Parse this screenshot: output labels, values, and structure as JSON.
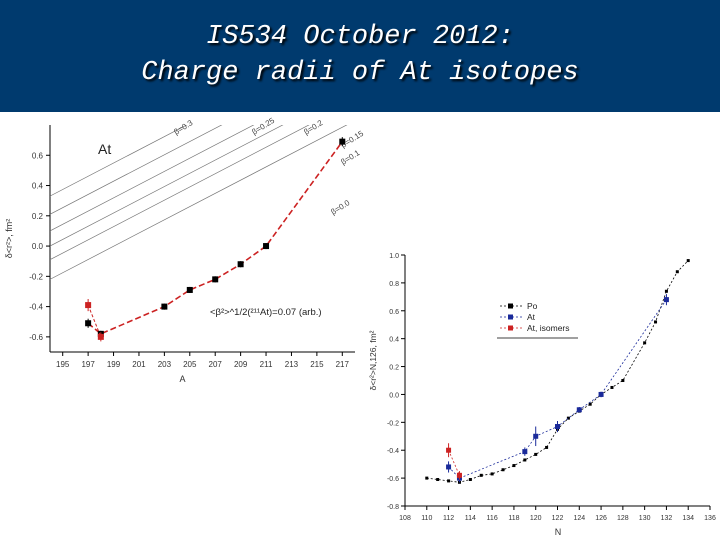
{
  "slide": {
    "title_line1": "IS534 October 2012:",
    "title_line2": "Charge radii of At isotopes"
  },
  "colors": {
    "header_bg": "#003a6e",
    "title_text": "#ffffff",
    "red": "#cc2222",
    "blue": "#1a2a9a"
  },
  "chart_data": [
    {
      "type": "line",
      "title": "At",
      "xlabel": "A",
      "ylabel": "δ<r²>, fm²",
      "xlim": [
        194,
        218
      ],
      "ylim": [
        -0.7,
        0.8
      ],
      "x_ticks": [
        195,
        197,
        199,
        201,
        203,
        205,
        207,
        209,
        211,
        213,
        215,
        217
      ],
      "y_ticks": [
        -0.6,
        -0.4,
        -0.2,
        0.0,
        0.2,
        0.4,
        0.6
      ],
      "grid": false,
      "annotation": "<β²>^1/2(²¹¹At)=0.07 (arb.)",
      "beta_lines": [
        {
          "label": "β=0.3",
          "y_at_xmin": 0.33
        },
        {
          "label": "β=0.25",
          "y_at_xmin": 0.21
        },
        {
          "label": "β=0.2",
          "y_at_xmin": 0.1
        },
        {
          "label": "β=0.15",
          "y_at_xmin": 0.0
        },
        {
          "label": "β=0.1",
          "y_at_xmin": -0.09
        },
        {
          "label": "β=0.0",
          "y_at_xmin": -0.22
        }
      ],
      "series": [
        {
          "color": "#000000",
          "points": [
            [
              197,
              -0.51
            ],
            [
              198,
              -0.58
            ],
            [
              203,
              -0.4
            ],
            [
              205,
              -0.29
            ],
            [
              207,
              -0.22
            ],
            [
              209,
              -0.12
            ],
            [
              211,
              0.0
            ],
            [
              217,
              0.69
            ]
          ],
          "errors": [
            0.03,
            0.02,
            0.02,
            0.02,
            0.02,
            0.02,
            0.02,
            0.03
          ]
        },
        {
          "color": "#cc2222",
          "points": [
            [
              197,
              -0.39
            ],
            [
              198,
              -0.6
            ]
          ],
          "errors": [
            0.04,
            0.03
          ]
        }
      ]
    },
    {
      "type": "line",
      "xlabel": "N",
      "ylabel": "δ<r²>N,126, fm²",
      "xlim": [
        108,
        136
      ],
      "ylim": [
        -0.8,
        1.0
      ],
      "x_ticks": [
        108,
        110,
        112,
        114,
        116,
        118,
        120,
        122,
        124,
        126,
        128,
        130,
        132,
        134,
        136
      ],
      "y_ticks": [
        -0.8,
        -0.6,
        -0.4,
        -0.2,
        0.0,
        0.2,
        0.4,
        0.6,
        0.8,
        1.0
      ],
      "y_tick_labels": [
        "-0.8",
        "-0.6",
        "-0.4",
        "-0.2",
        "0.0",
        "0.2",
        "0.4",
        "0.6",
        "0.8",
        "1.0"
      ],
      "grid": false,
      "legend": {
        "position": "top-right",
        "entries": [
          "Po",
          "At",
          "At, isomers"
        ]
      },
      "series": [
        {
          "name": "Po",
          "color": "#000000",
          "marker": "square-small",
          "points": [
            [
              110,
              -0.6
            ],
            [
              111,
              -0.61
            ],
            [
              112,
              -0.62
            ],
            [
              113,
              -0.63
            ],
            [
              114,
              -0.61
            ],
            [
              115,
              -0.58
            ],
            [
              116,
              -0.57
            ],
            [
              117,
              -0.54
            ],
            [
              118,
              -0.51
            ],
            [
              119,
              -0.47
            ],
            [
              120,
              -0.43
            ],
            [
              121,
              -0.38
            ],
            [
              122,
              -0.25
            ],
            [
              123,
              -0.17
            ],
            [
              124,
              -0.12
            ],
            [
              125,
              -0.07
            ],
            [
              126,
              0.0
            ],
            [
              127,
              0.05
            ],
            [
              128,
              0.1
            ],
            [
              130,
              0.37
            ],
            [
              131,
              0.52
            ],
            [
              132,
              0.74
            ],
            [
              133,
              0.88
            ],
            [
              134,
              0.96
            ]
          ]
        },
        {
          "name": "At",
          "color": "#1a2a9a",
          "marker": "square",
          "points": [
            [
              112,
              -0.52
            ],
            [
              113,
              -0.6
            ],
            [
              119,
              -0.41
            ],
            [
              120,
              -0.3
            ],
            [
              122,
              -0.23
            ],
            [
              124,
              -0.11
            ],
            [
              126,
              0.0
            ],
            [
              132,
              0.68
            ]
          ],
          "errors": [
            0.04,
            0.03,
            0.03,
            0.07,
            0.04,
            0.02,
            0.02,
            0.04
          ]
        },
        {
          "name": "At, isomers",
          "color": "#cc2222",
          "marker": "square",
          "points": [
            [
              112,
              -0.4
            ],
            [
              113,
              -0.58
            ]
          ],
          "errors": [
            0.05,
            0.03
          ]
        }
      ]
    }
  ]
}
